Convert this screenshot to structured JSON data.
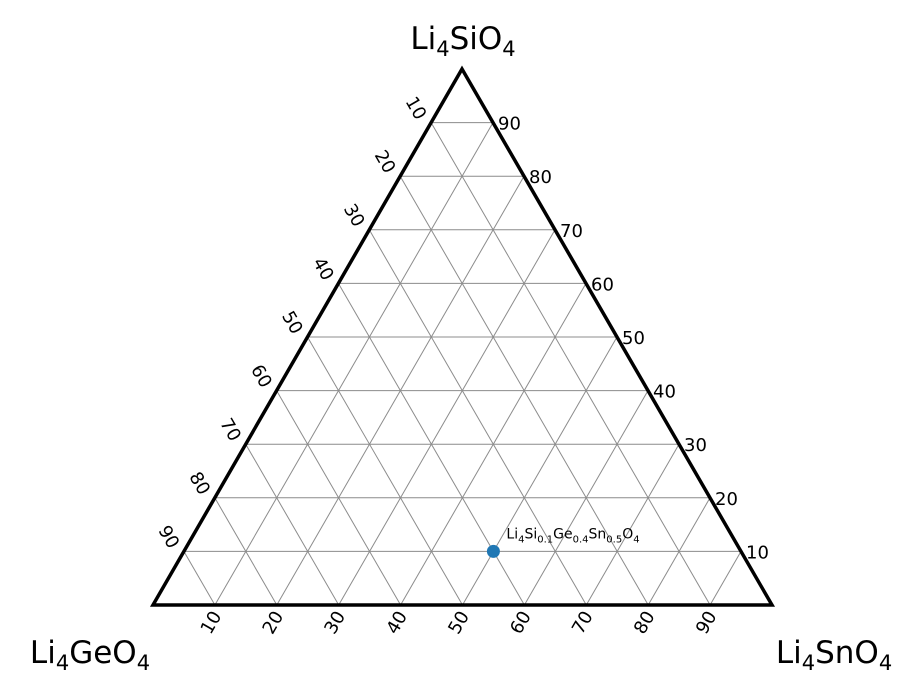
{
  "chart_data": {
    "type": "scatter",
    "subtype": "ternary",
    "title": "",
    "vertices": {
      "top": "Li4SiO4",
      "left": "Li4GeO4",
      "right": "Li4SnO4"
    },
    "vertex_labels": {
      "top": {
        "pre": "Li",
        "sub1": "4",
        "mid": "SiO",
        "sub2": "4"
      },
      "left": {
        "pre": "Li",
        "sub1": "4",
        "mid": "GeO",
        "sub2": "4"
      },
      "right": {
        "pre": "Li",
        "sub1": "4",
        "mid": "SnO",
        "sub2": "4"
      }
    },
    "axis_range": [
      0,
      100
    ],
    "tick_step": 10,
    "ticks": [
      "10",
      "20",
      "30",
      "40",
      "50",
      "60",
      "70",
      "80",
      "90"
    ],
    "grid": true,
    "points": [
      {
        "Li4SiO4": 10,
        "Li4GeO4": 40,
        "Li4SnO4": 50,
        "label": "Li4Si0.1Ge0.4Sn0.5O4",
        "label_parts": [
          "Li",
          "4",
          "Si",
          "0.1",
          "Ge",
          "0.4",
          "Sn",
          "0.5",
          "O",
          "4"
        ],
        "color": "#1f77b4"
      }
    ],
    "colors": {
      "frame": "#000000",
      "grid": "#8c8c8c",
      "point": "#1f77b4"
    }
  }
}
